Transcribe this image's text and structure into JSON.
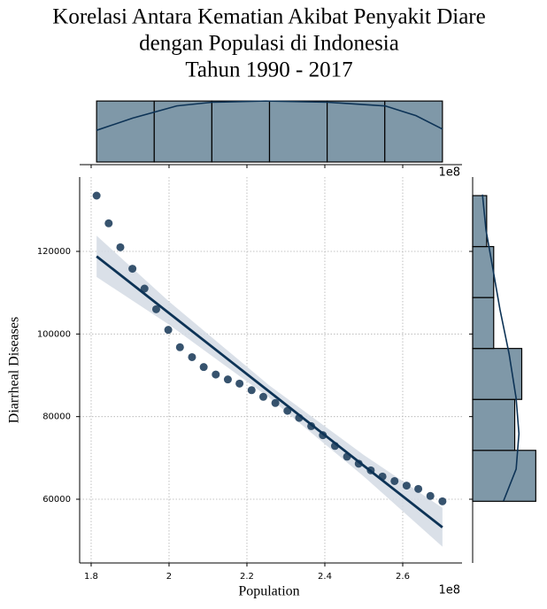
{
  "chart_data": [
    {
      "type": "scatter",
      "title": [
        "Korelasi Antara Kematian Akibat Penyakit Diare",
        "dengan Populasi di Indonesia",
        "Tahun 1990 - 2017"
      ],
      "x_label": "Population",
      "y_label": "Diarrheal Diseases",
      "x_offset_label": "1e8",
      "x": [
        1.814,
        1.845,
        1.875,
        1.906,
        1.937,
        1.967,
        1.998,
        2.028,
        2.059,
        2.089,
        2.12,
        2.151,
        2.181,
        2.212,
        2.242,
        2.273,
        2.304,
        2.334,
        2.365,
        2.395,
        2.426,
        2.457,
        2.487,
        2.518,
        2.548,
        2.579,
        2.61,
        2.64,
        2.671,
        2.702
      ],
      "series": [
        {
          "color": "#2c4a66",
          "values": [
            133500,
            126800,
            121000,
            115800,
            111000,
            106000,
            101000,
            96800,
            94400,
            92000,
            90200,
            89000,
            88000,
            86400,
            84800,
            83300,
            81400,
            79700,
            77700,
            75500,
            72900,
            70300,
            68600,
            67000,
            65500,
            64400,
            63300,
            62500,
            60800,
            59500
          ]
        }
      ],
      "regression": {
        "color": "#0d3356",
        "band_color": "#d3dbe4",
        "x": [
          1.814,
          2.0,
          2.258,
          2.5,
          2.702
        ],
        "values": [
          118800,
          105060,
          86000,
          68120,
          53200
        ],
        "ci_lower": [
          113800,
          102260,
          84500,
          65520,
          48500
        ],
        "ci_upper": [
          123800,
          107860,
          87500,
          70720,
          57900
        ]
      },
      "xlim": [
        1.7705,
        2.7523
      ],
      "ylim": [
        44570,
        138000
      ],
      "xticks": [
        1.8,
        2.0,
        2.2,
        2.4,
        2.6
      ],
      "yticks": [
        60000,
        80000,
        100000,
        120000
      ],
      "grid": true
    },
    {
      "type": "histogram",
      "orientation": "vertical",
      "offset_label": "1e8",
      "bins": [
        1.814,
        1.962,
        2.11,
        2.258,
        2.406,
        2.554,
        2.702
      ],
      "values": [
        5,
        5,
        5,
        5,
        5,
        5
      ],
      "color": "#7f98a8",
      "edge_color": "#000000",
      "ylim": [
        0,
        5.3
      ],
      "kde": {
        "color": "#0d3356",
        "x": [
          1.814,
          1.907,
          2.02,
          2.111,
          2.248,
          2.407,
          2.555,
          2.634,
          2.702
        ],
        "values": [
          2.6,
          3.6,
          4.6,
          4.9,
          5.0,
          4.9,
          4.6,
          3.8,
          2.7
        ]
      }
    },
    {
      "type": "histogram",
      "orientation": "horizontal",
      "bins": [
        59500,
        71833,
        84167,
        96500,
        108833,
        121167,
        133500
      ],
      "values": [
        9,
        6,
        7,
        3,
        3,
        2
      ],
      "color": "#7f98a8",
      "edge_color": "#000000",
      "xlim": [
        0,
        10.6
      ],
      "kde": {
        "color": "#0d3356",
        "x": [
          59570,
          67290,
          75870,
          84440,
          95160,
          105900,
          116600,
          125180,
          133750
        ],
        "values": [
          4.4,
          6.2,
          6.6,
          6.2,
          5.2,
          3.9,
          2.8,
          1.9,
          1.4
        ]
      }
    }
  ]
}
